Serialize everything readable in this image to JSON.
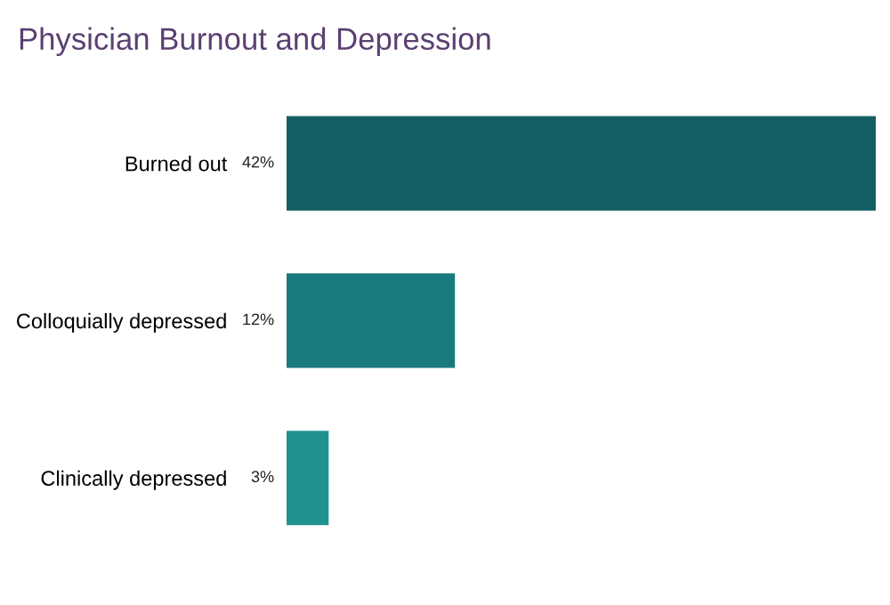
{
  "chart_data": {
    "type": "bar",
    "orientation": "horizontal",
    "title": "Physician Burnout and Depression",
    "categories": [
      "Burned out",
      "Colloquially depressed",
      "Clinically depressed"
    ],
    "values": [
      42,
      12,
      3
    ],
    "value_labels": [
      "42%",
      "12%",
      "3%"
    ],
    "colors": [
      "#125e63",
      "#197a7d",
      "#1f9191"
    ],
    "xlim": [
      0,
      42
    ]
  }
}
